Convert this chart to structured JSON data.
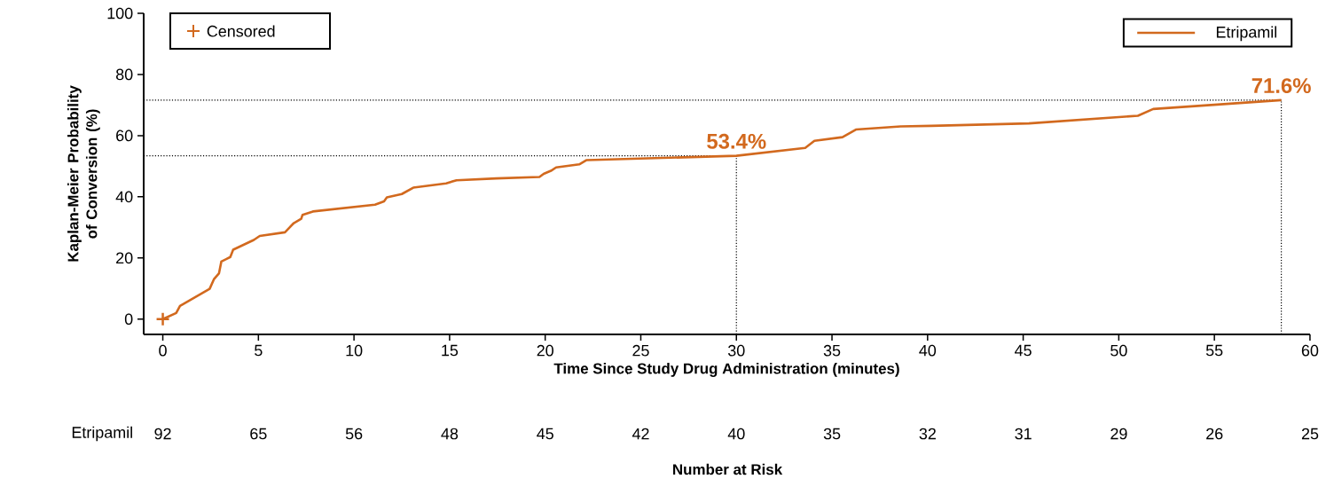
{
  "chart_data": {
    "type": "line",
    "xlabel": "Time Since Study Drug Administration (minutes)",
    "ylabel": "Kaplan-Meier Probability of Conversion (%)",
    "xlim": [
      -1,
      60
    ],
    "ylim": [
      -5,
      100
    ],
    "xticks": [
      0,
      5,
      10,
      15,
      20,
      25,
      30,
      35,
      40,
      45,
      50,
      55,
      60
    ],
    "yticks": [
      0,
      20,
      40,
      60,
      80,
      100
    ],
    "series": [
      {
        "name": "Etripamil",
        "color": "#d2691e",
        "type": "line",
        "x": [
          0,
          0.7,
          0.9,
          2.45,
          2.67,
          2.94,
          3.06,
          3.53,
          3.68,
          4.76,
          5.07,
          6.39,
          6.85,
          7.24,
          7.31,
          7.85,
          11.1,
          11.57,
          11.72,
          12.5,
          13.1,
          14.82,
          15.36,
          17.45,
          19.7,
          19.92,
          20.3,
          20.57,
          21.78,
          22.17,
          30,
          33.6,
          34.08,
          35.55,
          36.25,
          38.6,
          40.2,
          45.3,
          51.0,
          51.8,
          58.5
        ],
        "values": [
          0,
          2,
          4.3,
          9.9,
          13,
          15,
          18.8,
          20.3,
          22.7,
          25.9,
          27.2,
          28.4,
          31.4,
          32.8,
          34.1,
          35.2,
          37.4,
          38.5,
          39.8,
          40.9,
          43,
          44.4,
          45.4,
          46,
          46.5,
          47.5,
          48.5,
          49.6,
          50.6,
          52,
          53.4,
          56,
          58.3,
          59.5,
          62,
          63,
          63.2,
          64,
          66.5,
          68.7,
          71.6
        ]
      },
      {
        "color": "#d2691e",
        "type": "scatter",
        "marker": "cross",
        "x": [
          0
        ],
        "values": [
          0
        ]
      }
    ],
    "ref_lines": [
      {
        "axis": "y",
        "value": 53.4,
        "line_style": "dotted",
        "color": "#000000"
      },
      {
        "axis": "x",
        "value": 30,
        "line_style": "dotted",
        "color": "#000000"
      },
      {
        "axis": "y",
        "value": 71.6,
        "line_style": "dotted",
        "color": "#000000"
      },
      {
        "axis": "x",
        "value": 58.5,
        "line_style": "dotted",
        "color": "#000000"
      }
    ],
    "annotations": [
      {
        "text": "53.4%",
        "x": 30,
        "y": 53.4
      },
      {
        "text": "71.6%",
        "x": 58.5,
        "y": 71.6
      },
      "Censored",
      "Number at Risk",
      "Etripamil",
      "92",
      "65",
      "56",
      "48",
      "45",
      "42",
      "40",
      "35",
      "32",
      "31",
      "29",
      "26",
      "25"
    ],
    "legend": "top right",
    "grid": false
  }
}
